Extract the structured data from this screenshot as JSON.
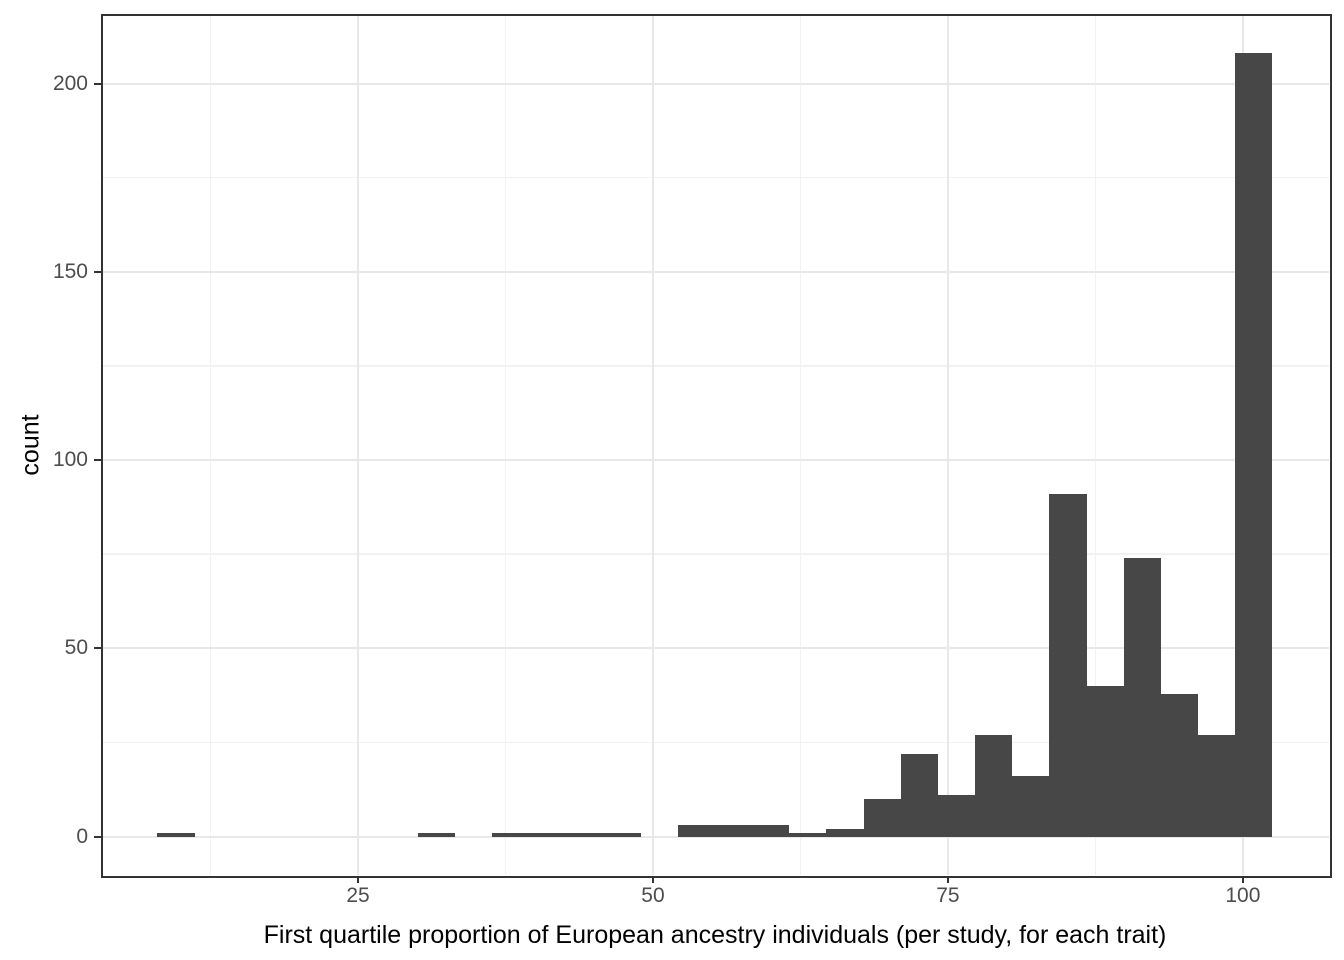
{
  "chart_data": {
    "type": "bar",
    "subtype": "histogram",
    "title": "",
    "xlabel": "First quartile proportion of European ancestry individuals (per study, for each trait)",
    "ylabel": "count",
    "bin_start": 8.0,
    "bin_width": 3.15,
    "counts": [
      1,
      0,
      0,
      0,
      0,
      0,
      0,
      1,
      0,
      1,
      1,
      1,
      1,
      0,
      3,
      3,
      3,
      1,
      2,
      10,
      22,
      11,
      27,
      16,
      91,
      40,
      74,
      38,
      27,
      208
    ],
    "x_axis": {
      "tick_values": [
        25,
        50,
        75,
        100
      ],
      "tick_labels": [
        "25",
        "50",
        "75",
        "100"
      ],
      "minor_tick_values": [
        12.5,
        37.5,
        62.5,
        87.5
      ],
      "limits": [
        3.3,
        107.3
      ]
    },
    "y_axis": {
      "tick_values": [
        0,
        50,
        100,
        150,
        200
      ],
      "tick_labels": [
        "0",
        "50",
        "100",
        "150",
        "200"
      ],
      "minor_tick_values": [
        25,
        75,
        125,
        175
      ],
      "limits": [
        -10.2,
        218.2
      ]
    },
    "grid": true,
    "legend_position": "none",
    "colors": {
      "bar": "#474747",
      "grid_major": "#e8e8e8",
      "grid_minor": "#f2f2f2",
      "panel_border": "#333333",
      "tick_mark": "#333333",
      "tick_label": "#4d4d4d",
      "axis_title": "#000000",
      "panel_background": "#ffffff"
    }
  }
}
